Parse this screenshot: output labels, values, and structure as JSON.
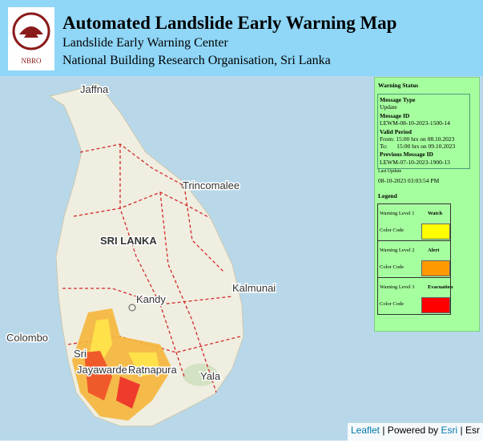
{
  "header": {
    "logo": "NBRO",
    "title": "Automated Landslide Early Warning Map",
    "subtitle": "Landslide Early Warning Center",
    "organisation": "National Building Research Organisation, Sri Lanka"
  },
  "map_labels": {
    "jaffna": "Jaffna",
    "trincomalee": "Trincomalee",
    "country": "SRI LANKA",
    "kalmunai": "Kalmunai",
    "kandy": "Kandy",
    "colombo": "Colombo",
    "sri": "Sri",
    "jayawardenepura": "Jayawardenepura",
    "ratnapura": "Ratnapura",
    "yala": "Yala"
  },
  "attribution": {
    "leaflet": "Leaflet",
    "powered": "| Powered by",
    "esri": "Esri",
    "more": "| Esr"
  },
  "warning_status": {
    "title": "Warning Status",
    "message_type_label": "Message Type",
    "message_type": "Update",
    "message_id_label": "Message ID",
    "message_id": "LEWM-08-10-2023-1500-14",
    "valid_period_label": "Valid Period",
    "valid_from": "From: 15:00 hrs on 08.10.2023",
    "valid_to": "To:      15:00 hrs on 09.10.2023",
    "previous_id_label": "Previous Message ID",
    "previous_id": "LEWM-07-10-2023-1900-13",
    "last_update_label": "Last Update",
    "last_update": "08-10-2023 03:03:54 PM"
  },
  "legend": {
    "title": "Legend",
    "items": [
      {
        "level": "Warning Level 1",
        "name": "Watch",
        "code_label": "Color Code",
        "color": "#ffff00"
      },
      {
        "level": "Warning Level 2",
        "name": "Alert",
        "code_label": "Color Code",
        "color": "#ff9900"
      },
      {
        "level": "Warning Level 3",
        "name": "Evacuation",
        "code_label": "Color Code",
        "color": "#ff0000"
      }
    ]
  }
}
